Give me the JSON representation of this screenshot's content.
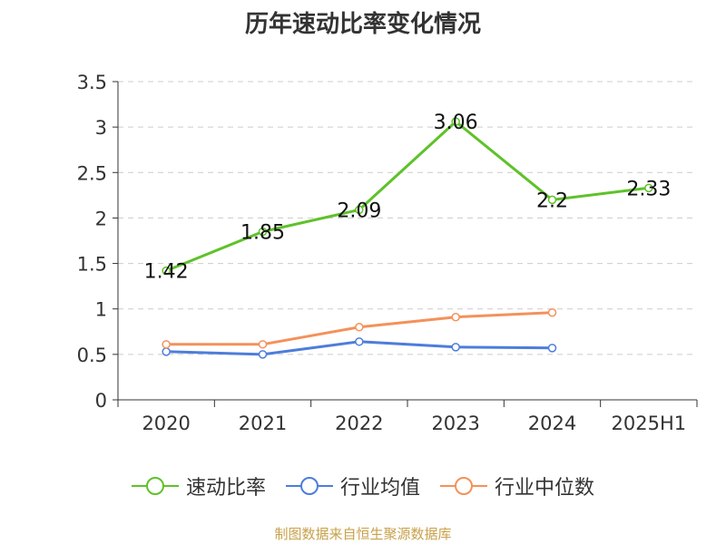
{
  "chart_data": {
    "type": "line",
    "title": "历年速动比率变化情况",
    "categories": [
      "2020",
      "2021",
      "2022",
      "2023",
      "2024",
      "2025H1"
    ],
    "ylim": [
      0,
      3.5
    ],
    "yticks": [
      "0",
      "0.5",
      "1",
      "1.5",
      "2",
      "2.5",
      "3",
      "3.5"
    ],
    "grid": true,
    "legend_position": "bottom",
    "series": [
      {
        "name": "速动比率",
        "color": "#5ec229",
        "values": [
          1.42,
          1.85,
          2.09,
          3.06,
          2.2,
          2.33
        ],
        "labels": [
          "1.42",
          "1.85",
          "2.09",
          "3.06",
          "2.2",
          "2.33"
        ]
      },
      {
        "name": "行业均值",
        "color": "#4d7ddb",
        "values": [
          0.53,
          0.5,
          0.64,
          0.58,
          0.57,
          null
        ]
      },
      {
        "name": "行业中位数",
        "color": "#f4915a",
        "values": [
          0.61,
          0.61,
          0.8,
          0.91,
          0.96,
          null
        ]
      }
    ]
  },
  "source_note": "制图数据来自恒生聚源数据库"
}
